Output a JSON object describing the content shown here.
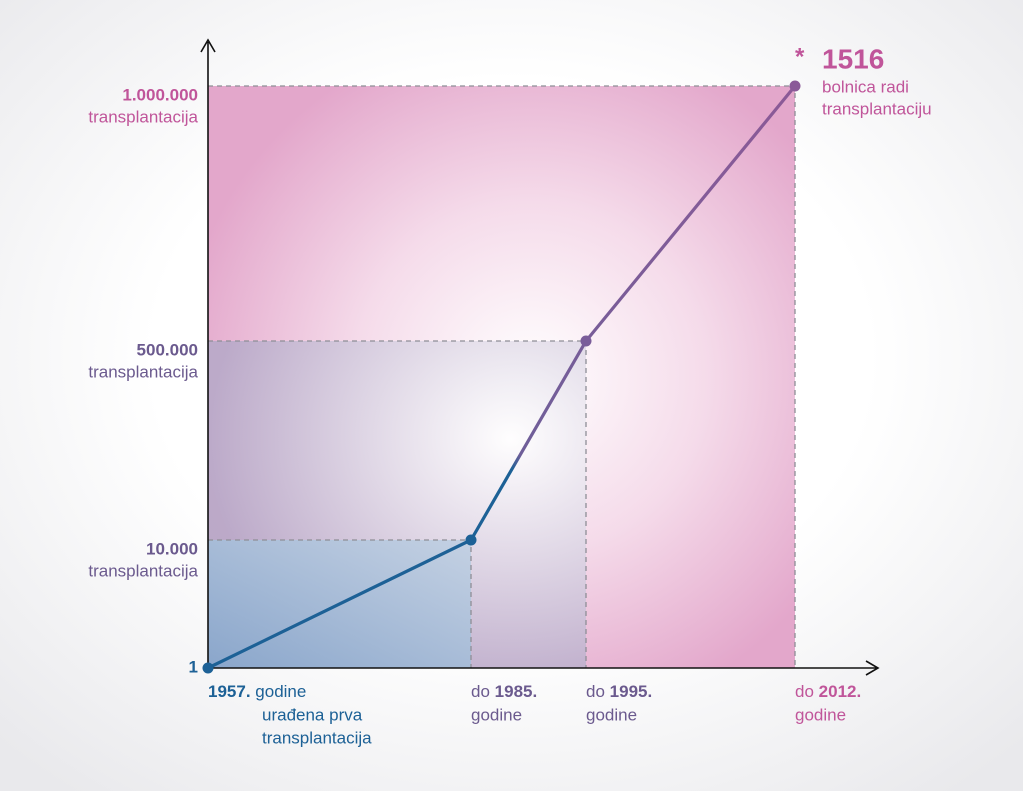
{
  "chart_data": {
    "type": "line",
    "x": [
      1957,
      1985,
      1995,
      2012
    ],
    "series": [
      {
        "values": [
          1,
          10000,
          500000,
          1000000
        ],
        "point_colors": [
          "#1d6196",
          "#1d6196",
          "#7a5d9a",
          "#8a5a98"
        ]
      }
    ],
    "xticks": [
      {
        "value": 1957,
        "label": "1957."
      },
      {
        "value": 1985,
        "label": "1985."
      },
      {
        "value": 1995,
        "label": "1995."
      },
      {
        "value": 2012,
        "label": "2012."
      }
    ],
    "xtick_prefixes": [
      null,
      "do",
      "do",
      "do"
    ],
    "xtick_suffixes": [
      "godine",
      "godine",
      "godine",
      "godine"
    ],
    "xtick_colors": [
      "#1d6196",
      "#6b5a8e",
      "#6b5a8e",
      "#c0559a"
    ],
    "first_note": [
      "urađena prva",
      "transplantacija"
    ],
    "yticks": [
      1,
      {
        "value": 10000,
        "label": "10.000"
      },
      {
        "value": 500000,
        "label": "500.000"
      },
      {
        "value": 1000000,
        "label": "1.000.000"
      }
    ],
    "ytick_notes": [
      null,
      "transplantacija",
      "transplantacija",
      "transplantacija"
    ],
    "ytick_colors": [
      "#1d6196",
      "#6b5a8e",
      "#6b5a8e",
      "#c0559a"
    ],
    "annotation": {
      "marker": "*",
      "number": 1516,
      "lines": [
        "bolnica radi",
        "transplantaciju"
      ],
      "color": "#c0559a"
    }
  }
}
